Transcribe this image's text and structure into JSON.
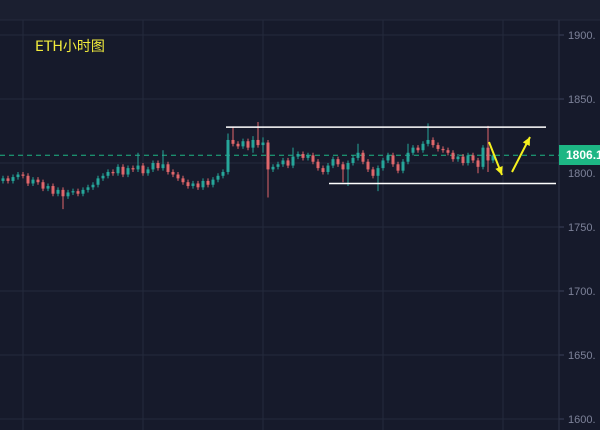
{
  "chart_data": {
    "type": "candlestick",
    "title": "ETH小时图",
    "ylim": [
      1590,
      1920
    ],
    "y_ticks": [
      "1900.",
      "1850.",
      "1800.",
      "1750.",
      "1700.",
      "1650.",
      "1600."
    ],
    "y_tick_values": [
      1900,
      1850,
      1800,
      1750,
      1700,
      1650,
      1600
    ],
    "grid": true,
    "last_price": 1806.1,
    "last_price_label": "1806.1",
    "open": [
      1786,
      1788,
      1786,
      1789,
      1791,
      1790,
      1784,
      1787,
      1785,
      1780,
      1782,
      1776,
      1779,
      1774,
      1777,
      1778,
      1776,
      1779,
      1781,
      1783,
      1788,
      1790,
      1793,
      1792,
      1797,
      1791,
      1796,
      1795,
      1798,
      1792,
      1795,
      1800,
      1796,
      1799,
      1793,
      1791,
      1788,
      1785,
      1782,
      1784,
      1781,
      1786,
      1783,
      1787,
      1790,
      1793,
      1818,
      1815,
      1813,
      1817,
      1812,
      1818,
      1814,
      1816,
      1795,
      1797,
      1799,
      1802,
      1798,
      1805,
      1807,
      1804,
      1806,
      1801,
      1796,
      1793,
      1798,
      1803,
      1799,
      1795,
      1800,
      1804,
      1808,
      1801,
      1795,
      1790,
      1796,
      1802,
      1806,
      1799,
      1794,
      1801,
      1808,
      1812,
      1810,
      1815,
      1818,
      1814,
      1811,
      1810,
      1808,
      1803,
      1805,
      1800,
      1806,
      1802,
      1797,
      1812,
      1802
    ],
    "high": [
      1790,
      1790,
      1791,
      1793,
      1793,
      1792,
      1789,
      1789,
      1787,
      1784,
      1784,
      1781,
      1781,
      1779,
      1780,
      1780,
      1781,
      1783,
      1785,
      1790,
      1792,
      1795,
      1795,
      1799,
      1799,
      1798,
      1798,
      1808,
      1800,
      1797,
      1802,
      1802,
      1810,
      1801,
      1795,
      1793,
      1790,
      1787,
      1786,
      1786,
      1788,
      1788,
      1789,
      1792,
      1795,
      1823,
      1828,
      1817,
      1819,
      1819,
      1821,
      1832,
      1820,
      1818,
      1799,
      1801,
      1804,
      1804,
      1812,
      1809,
      1809,
      1808,
      1808,
      1803,
      1798,
      1800,
      1805,
      1805,
      1801,
      1802,
      1806,
      1815,
      1810,
      1803,
      1797,
      1798,
      1804,
      1808,
      1808,
      1801,
      1803,
      1815,
      1814,
      1814,
      1817,
      1831,
      1820,
      1816,
      1813,
      1812,
      1810,
      1807,
      1807,
      1808,
      1808,
      1804,
      1814,
      1829,
      1808
    ],
    "low": [
      1784,
      1784,
      1784,
      1787,
      1788,
      1782,
      1782,
      1783,
      1778,
      1778,
      1774,
      1774,
      1764,
      1772,
      1775,
      1774,
      1774,
      1777,
      1779,
      1781,
      1786,
      1788,
      1790,
      1790,
      1789,
      1789,
      1793,
      1793,
      1790,
      1790,
      1793,
      1794,
      1794,
      1791,
      1789,
      1786,
      1783,
      1780,
      1780,
      1779,
      1779,
      1781,
      1781,
      1785,
      1788,
      1791,
      1813,
      1811,
      1811,
      1810,
      1808,
      1812,
      1808,
      1773,
      1793,
      1795,
      1797,
      1796,
      1796,
      1803,
      1802,
      1802,
      1799,
      1794,
      1791,
      1791,
      1796,
      1797,
      1785,
      1782,
      1798,
      1802,
      1799,
      1793,
      1788,
      1778,
      1794,
      1800,
      1797,
      1792,
      1792,
      1799,
      1806,
      1808,
      1808,
      1813,
      1812,
      1809,
      1808,
      1806,
      1801,
      1801,
      1798,
      1798,
      1800,
      1792,
      1795,
      1793,
      1800
    ],
    "close": [
      1788,
      1786,
      1789,
      1791,
      1790,
      1784,
      1787,
      1785,
      1780,
      1782,
      1776,
      1779,
      1774,
      1777,
      1778,
      1776,
      1779,
      1781,
      1783,
      1788,
      1790,
      1793,
      1792,
      1797,
      1791,
      1796,
      1795,
      1798,
      1792,
      1795,
      1800,
      1796,
      1799,
      1793,
      1791,
      1788,
      1785,
      1782,
      1784,
      1781,
      1786,
      1783,
      1787,
      1790,
      1793,
      1818,
      1815,
      1813,
      1817,
      1812,
      1818,
      1814,
      1816,
      1795,
      1797,
      1799,
      1802,
      1798,
      1805,
      1807,
      1804,
      1806,
      1801,
      1796,
      1793,
      1798,
      1803,
      1799,
      1795,
      1800,
      1804,
      1808,
      1801,
      1795,
      1790,
      1796,
      1802,
      1806,
      1799,
      1794,
      1801,
      1808,
      1812,
      1810,
      1815,
      1818,
      1814,
      1811,
      1810,
      1808,
      1803,
      1805,
      1800,
      1806,
      1802,
      1797,
      1812,
      1802,
      1806
    ],
    "annotations": {
      "range_top": 1828,
      "range_bottom": 1784,
      "arrows": [
        "down",
        "up"
      ]
    },
    "colors": {
      "up": "#26a69a",
      "down": "#e0676b",
      "background": "#161a2b",
      "grid": "#242a3d",
      "arrow": "#f5f01e",
      "title": "#f2ec3c",
      "price_line": "#1db684"
    }
  }
}
